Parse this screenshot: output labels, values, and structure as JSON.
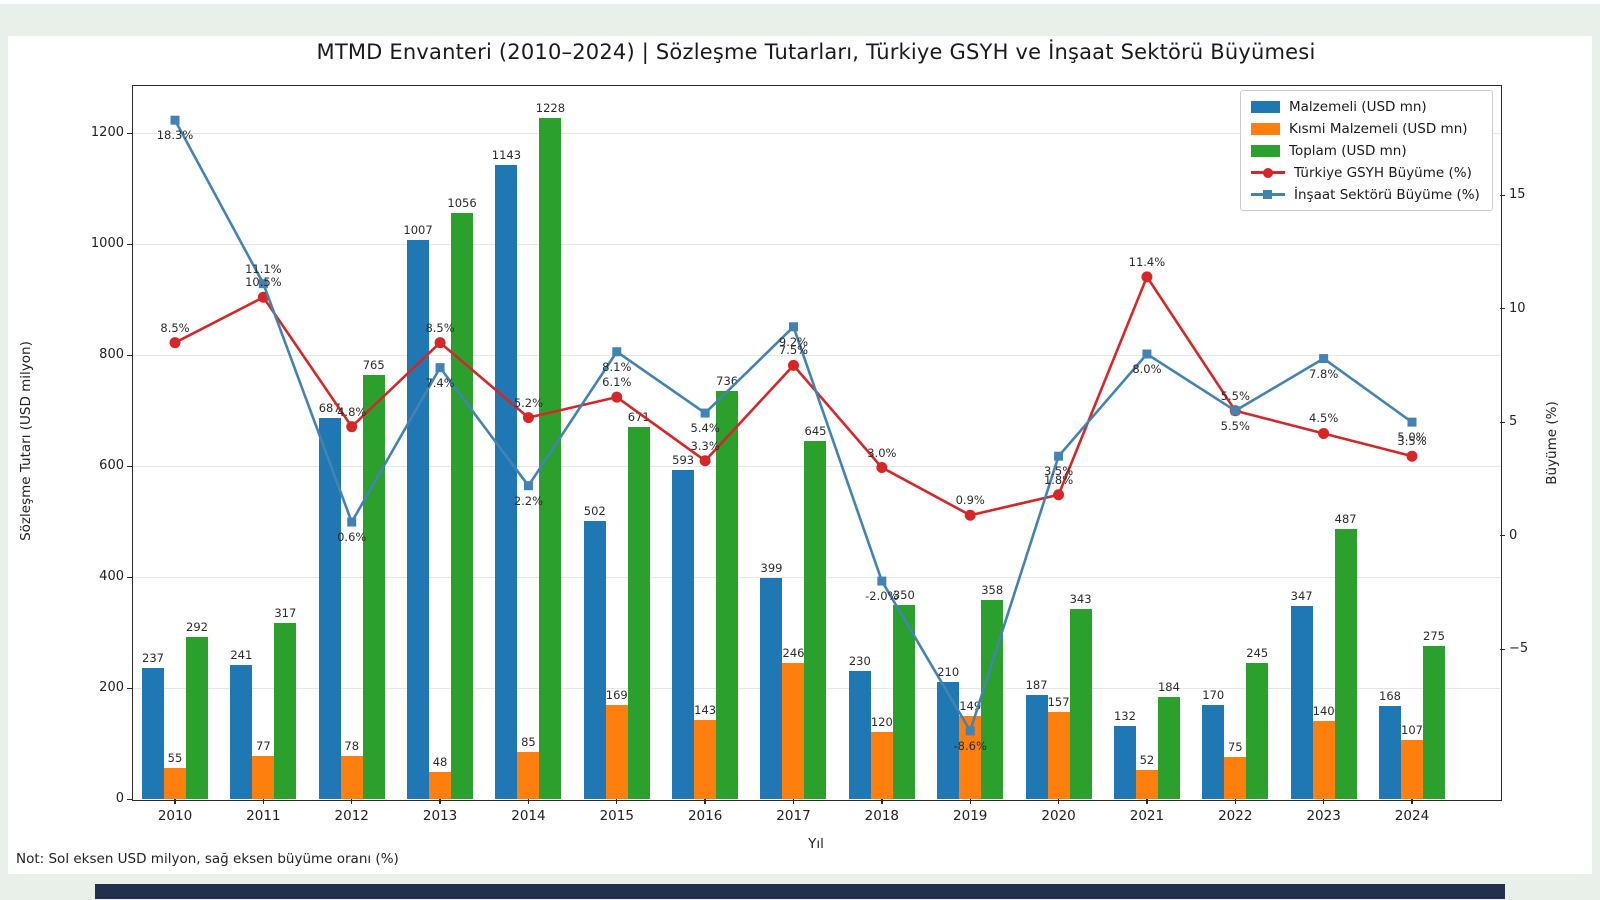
{
  "page": {
    "note": "Not: Sol eksen USD milyon, sağ eksen büyüme oranı (%)"
  },
  "colors": {
    "background_band": "#e9efe9",
    "footer_bar": "#22304e",
    "bar_blue": "#1f77b4",
    "bar_orange": "#ff7f0e",
    "bar_green": "#2ca02c",
    "line_red": "#d62728",
    "line_steelblue": "#4383b4",
    "grid": "#e7e7e7"
  },
  "chart_data": {
    "type": "bar",
    "subtype": "grouped bars with two overlay lines (dual axis)",
    "title": "MTMD Envanteri (2010–2024) | Sözleşme Tutarları, Türkiye GSYH ve İnşaat Sektörü Büyümesi",
    "xlabel": "Yıl",
    "ylabel_left": "Sözleşme Tutarı (USD milyon)",
    "ylabel_right": "Büyüme (%)",
    "ylim_left": [
      0,
      1287
    ],
    "ylim_right": [
      -11.6,
      19.85
    ],
    "grid": "horizontal, left-axis ticks",
    "legend_position": "upper right",
    "left_ticks": [
      0,
      200,
      400,
      600,
      800,
      1000,
      1200
    ],
    "right_ticks": [
      -5,
      0,
      5,
      10,
      15
    ],
    "right_tick_labels": [
      "−5",
      "0",
      "5",
      "10",
      "15"
    ],
    "categories": [
      "2010",
      "2011",
      "2012",
      "2013",
      "2014",
      "2015",
      "2016",
      "2017",
      "2018",
      "2019",
      "2020",
      "2021",
      "2022",
      "2023",
      "2024"
    ],
    "bar_series": [
      {
        "name": "Malzemeli (USD mn)",
        "color": "#1f77b4",
        "values": [
          237,
          241,
          687,
          1007,
          1143,
          502,
          593,
          399,
          230,
          210,
          187,
          132,
          170,
          347,
          168
        ]
      },
      {
        "name": "Kısmi Malzemeli (USD mn)",
        "color": "#ff7f0e",
        "values": [
          55,
          77,
          78,
          48,
          85,
          169,
          143,
          246,
          120,
          149,
          157,
          52,
          75,
          140,
          107
        ]
      },
      {
        "name": "Toplam (USD mn)",
        "color": "#2ca02c",
        "values": [
          292,
          317,
          765,
          1056,
          1228,
          671,
          736,
          645,
          350,
          358,
          343,
          184,
          245,
          487,
          275
        ]
      }
    ],
    "line_series": [
      {
        "name": "Türkiye GSYH Büyüme (%)",
        "color": "#d62728",
        "marker": "circle",
        "values": [
          8.5,
          10.5,
          4.8,
          8.5,
          5.2,
          6.1,
          3.3,
          7.5,
          3.0,
          0.9,
          1.8,
          11.4,
          5.5,
          4.5,
          3.5
        ],
        "labels": [
          "8.5%",
          "10.5%",
          "4.8%",
          "8.5%",
          "5.2%",
          "6.1%",
          "3.3%",
          "7.5%",
          "3.0%",
          "0.9%",
          "1.8%",
          "11.4%",
          "5.5%",
          "4.5%",
          "3.5%"
        ],
        "label_pos": [
          "above",
          "above",
          "above",
          "above",
          "above",
          "above",
          "above",
          "above",
          "above",
          "above",
          "above",
          "above",
          "above",
          "above",
          "above"
        ]
      },
      {
        "name": "İnşaat Sektörü Büyüme (%)",
        "color": "#4383b4",
        "marker": "square",
        "values": [
          18.3,
          11.1,
          0.6,
          7.4,
          2.2,
          8.1,
          5.4,
          9.2,
          -2.0,
          -8.6,
          3.5,
          8.0,
          5.5,
          7.8,
          5.0
        ],
        "labels": [
          "18.3%",
          "11.1%",
          "0.6%",
          "7.4%",
          "2.2%",
          "8.1%",
          "5.4%",
          "9.2%",
          "-2.0%",
          "-8.6%",
          "3.5%",
          "8.0%",
          "5.5%",
          "7.8%",
          "5.0%"
        ],
        "label_pos": [
          "below",
          "above",
          "below",
          "below",
          "below",
          "below",
          "below",
          "below",
          "below",
          "below",
          "below",
          "below",
          "below",
          "below",
          "below"
        ]
      }
    ],
    "legend": [
      "Malzemeli (USD mn)",
      "Kısmi Malzemeli (USD mn)",
      "Toplam (USD mn)",
      "Türkiye GSYH Büyüme (%)",
      "İnşaat Sektörü Büyüme (%)"
    ]
  }
}
